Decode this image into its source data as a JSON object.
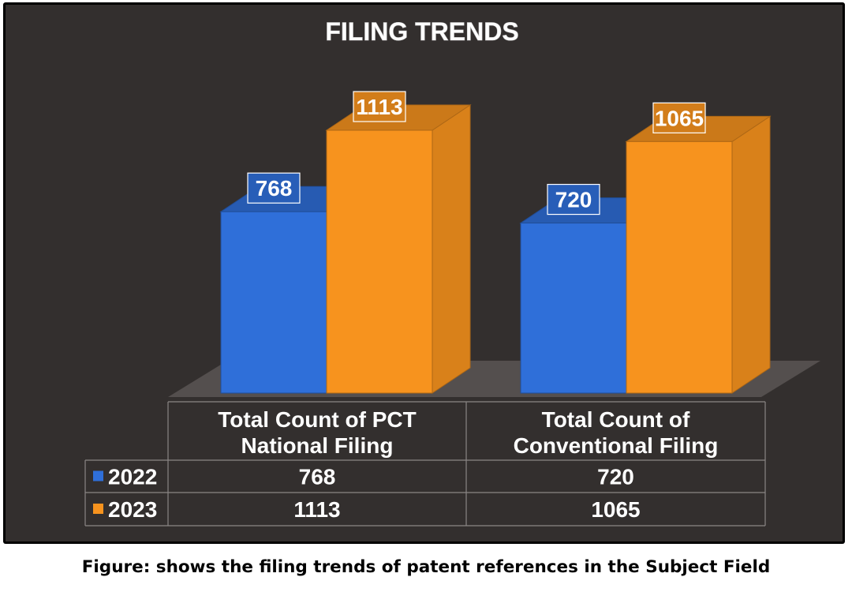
{
  "chart_data": {
    "type": "bar",
    "title": "FILING TRENDS",
    "categories": [
      "Total Count of PCT National Filing",
      "Total Count of Conventional Filing"
    ],
    "category_lines": [
      [
        "Total Count of PCT",
        "National Filing"
      ],
      [
        "Total Count of",
        "Conventional Filing"
      ]
    ],
    "series": [
      {
        "name": "2022",
        "values": [
          768,
          720
        ],
        "color": "#2f6fd9"
      },
      {
        "name": "2023",
        "values": [
          1113,
          1065
        ],
        "color": "#f7931e"
      }
    ],
    "ylim": [
      0,
      1113
    ],
    "grid": false,
    "legend": "data-table",
    "data_table": true,
    "data_labels": true
  },
  "caption": "Figure: shows the filing trends of patent references in the Subject Field",
  "colors": {
    "background": "#332f2e",
    "frame": "#000000",
    "floor": "#5a5554",
    "table_line": "#8a8685",
    "text": "#ffffff"
  }
}
